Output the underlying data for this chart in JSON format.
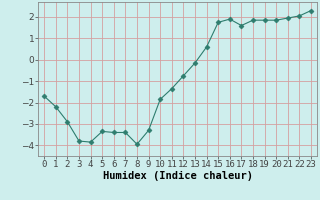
{
  "x": [
    0,
    1,
    2,
    3,
    4,
    5,
    6,
    7,
    8,
    9,
    10,
    11,
    12,
    13,
    14,
    15,
    16,
    17,
    18,
    19,
    20,
    21,
    22,
    23
  ],
  "y": [
    -1.7,
    -2.2,
    -2.9,
    -3.8,
    -3.85,
    -3.35,
    -3.4,
    -3.4,
    -3.95,
    -3.3,
    -1.85,
    -1.35,
    -0.75,
    -0.15,
    0.6,
    1.75,
    1.9,
    1.6,
    1.85,
    1.85,
    1.85,
    1.95,
    2.05,
    2.3
  ],
  "xlabel": "Humidex (Indice chaleur)",
  "xlim": [
    -0.5,
    23.5
  ],
  "ylim": [
    -4.5,
    2.7
  ],
  "yticks": [
    -4,
    -3,
    -2,
    -1,
    0,
    1,
    2
  ],
  "xtick_labels": [
    "0",
    "1",
    "2",
    "3",
    "4",
    "5",
    "6",
    "7",
    "8",
    "9",
    "10",
    "11",
    "12",
    "13",
    "14",
    "15",
    "16",
    "17",
    "18",
    "19",
    "20",
    "21",
    "22",
    "23"
  ],
  "line_color": "#2e7d6e",
  "marker": "D",
  "marker_size": 2.5,
  "bg_color": "#ceeeed",
  "grid_color": "#d4a0a0",
  "label_fontsize": 7.5,
  "tick_fontsize": 6.5
}
